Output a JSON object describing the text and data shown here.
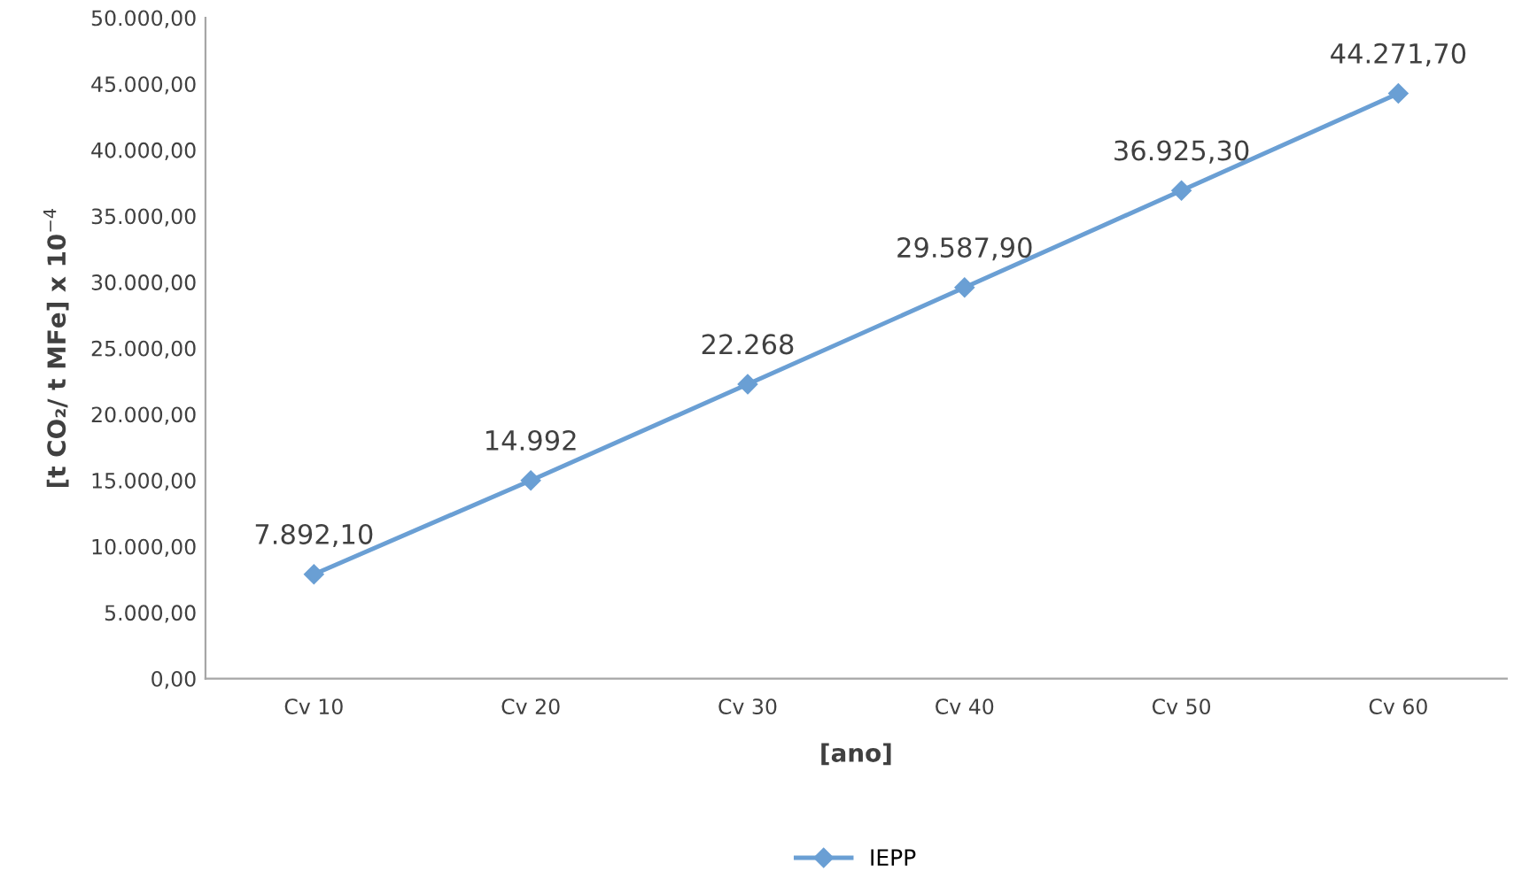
{
  "chart_data": {
    "type": "line",
    "xlabel": "[ano]",
    "ylabel": "[t CO₂/ t MFe] x 10$^{−4}$",
    "categories": [
      "Cv 10",
      "Cv 20",
      "Cv 30",
      "Cv 40",
      "Cv 50",
      "Cv 60"
    ],
    "series": [
      {
        "name": "IEPP",
        "color": "#6a9fd4",
        "values": [
          7892.1,
          14992,
          22268,
          29587.9,
          36925.3,
          44271.7
        ],
        "value_labels": [
          "7.892,10",
          "14.992",
          "22.268",
          "29.587,90",
          "36.925,30",
          "44.271,70"
        ]
      }
    ],
    "ylim": [
      0,
      50000
    ],
    "yticks": [
      {
        "value": 0,
        "label": "0,00"
      },
      {
        "value": 5000,
        "label": "5.000,00"
      },
      {
        "value": 10000,
        "label": "10.000,00"
      },
      {
        "value": 15000,
        "label": "15.000,00"
      },
      {
        "value": 20000,
        "label": "20.000,00"
      },
      {
        "value": 25000,
        "label": "25.000,00"
      },
      {
        "value": 30000,
        "label": "30.000,00"
      },
      {
        "value": 35000,
        "label": "35.000,00"
      },
      {
        "value": 40000,
        "label": "40.000,00"
      },
      {
        "value": 45000,
        "label": "45.000,00"
      },
      {
        "value": 50000,
        "label": "50.000,00"
      }
    ],
    "grid": false,
    "legend": "bottom",
    "marker": "diamond",
    "line_style": "solid"
  }
}
